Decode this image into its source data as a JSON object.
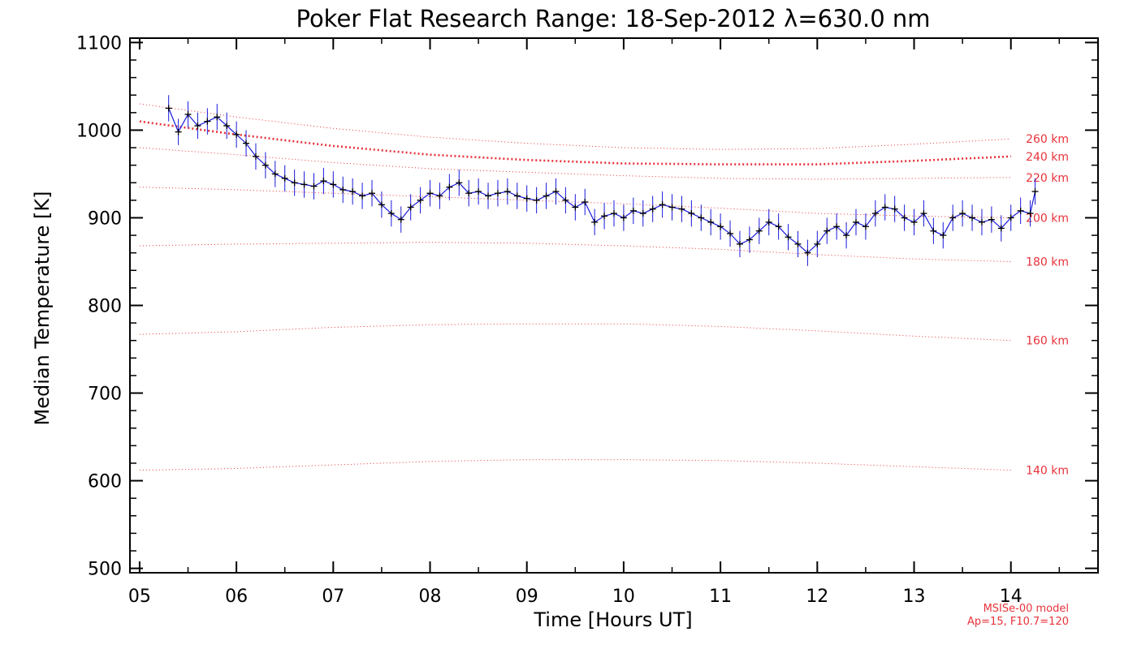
{
  "chart_data": {
    "type": "line",
    "title": "Poker Flat Research Range: 18-Sep-2012 λ=630.0 nm",
    "xlabel": "Time [Hours UT]",
    "ylabel": "Median Temperature [K]",
    "xlim": [
      4.9,
      14.9
    ],
    "ylim": [
      495,
      1105
    ],
    "x_ticks": [
      5,
      6,
      7,
      8,
      9,
      10,
      11,
      12,
      13,
      14
    ],
    "x_tick_labels": [
      "05",
      "06",
      "07",
      "08",
      "09",
      "10",
      "11",
      "12",
      "13",
      "14"
    ],
    "y_ticks": [
      500,
      600,
      700,
      800,
      900,
      1000,
      1100
    ],
    "y_tick_labels": [
      "500",
      "600",
      "700",
      "800",
      "900",
      "1000",
      "1100"
    ],
    "grid": false,
    "colors": {
      "data": "#1a1adc",
      "smoothed": "#000000",
      "model": "#e8323a"
    },
    "series": [
      {
        "kind": "measured",
        "errorbar": 15,
        "x": [
          5.3,
          5.4,
          5.5,
          5.6,
          5.7,
          5.8,
          5.9,
          6.0,
          6.1,
          6.2,
          6.3,
          6.4,
          6.5,
          6.6,
          6.7,
          6.8,
          6.9,
          7.0,
          7.1,
          7.2,
          7.3,
          7.4,
          7.5,
          7.6,
          7.7,
          7.8,
          7.9,
          8.0,
          8.1,
          8.2,
          8.3,
          8.4,
          8.5,
          8.6,
          8.7,
          8.8,
          8.9,
          9.0,
          9.1,
          9.2,
          9.3,
          9.4,
          9.5,
          9.6,
          9.7,
          9.8,
          9.9,
          10.0,
          10.1,
          10.2,
          10.3,
          10.4,
          10.5,
          10.6,
          10.7,
          10.8,
          10.9,
          11.0,
          11.1,
          11.2,
          11.3,
          11.4,
          11.5,
          11.6,
          11.7,
          11.8,
          11.9,
          12.0,
          12.1,
          12.2,
          12.3,
          12.4,
          12.5,
          12.6,
          12.7,
          12.8,
          12.9,
          13.0,
          13.1,
          13.2,
          13.3,
          13.4,
          13.5,
          13.6,
          13.7,
          13.8,
          13.9,
          14.0,
          14.1,
          14.2,
          14.25
        ],
        "y": [
          1025,
          998,
          1018,
          1005,
          1010,
          1015,
          1005,
          995,
          985,
          970,
          960,
          950,
          945,
          940,
          938,
          936,
          942,
          938,
          932,
          930,
          925,
          928,
          915,
          905,
          898,
          912,
          920,
          928,
          925,
          935,
          940,
          928,
          930,
          925,
          928,
          930,
          925,
          922,
          920,
          925,
          930,
          920,
          912,
          918,
          895,
          902,
          905,
          900,
          908,
          905,
          910,
          915,
          912,
          910,
          905,
          900,
          895,
          890,
          882,
          870,
          875,
          885,
          895,
          890,
          878,
          870,
          860,
          870,
          885,
          890,
          880,
          895,
          890,
          905,
          912,
          910,
          900,
          895,
          905,
          885,
          880,
          900,
          905,
          900,
          895,
          898,
          888,
          900,
          908,
          905,
          930
        ]
      }
    ],
    "model_curves": [
      {
        "label": "140 km",
        "x": [
          5,
          6,
          7,
          8,
          9,
          10,
          11,
          12,
          13,
          14
        ],
        "y": [
          612,
          614,
          618,
          622,
          624,
          624,
          623,
          620,
          616,
          612
        ]
      },
      {
        "label": "160 km",
        "x": [
          5,
          6,
          7,
          8,
          9,
          10,
          11,
          12,
          13,
          14
        ],
        "y": [
          767,
          770,
          775,
          778,
          779,
          779,
          776,
          771,
          765,
          760
        ]
      },
      {
        "label": "180 km",
        "x": [
          5,
          6,
          7,
          8,
          9,
          10,
          11,
          12,
          13,
          14
        ],
        "y": [
          868,
          870,
          871,
          872,
          871,
          868,
          864,
          858,
          853,
          850
        ]
      },
      {
        "label": "200 km",
        "x": [
          5,
          6,
          7,
          8,
          9,
          10,
          11,
          12,
          13,
          14
        ],
        "y": [
          935,
          932,
          928,
          924,
          920,
          916,
          911,
          905,
          902,
          900
        ]
      },
      {
        "label": "220 km",
        "x": [
          5,
          6,
          7,
          8,
          9,
          10,
          11,
          12,
          13,
          14
        ],
        "y": [
          980,
          972,
          963,
          956,
          952,
          948,
          945,
          944,
          945,
          946
        ]
      },
      {
        "label": "240 km",
        "x": [
          5,
          6,
          7,
          8,
          9,
          10,
          11,
          12,
          13,
          14
        ],
        "y": [
          1010,
          995,
          982,
          972,
          966,
          962,
          961,
          961,
          965,
          970
        ]
      },
      {
        "label": "260 km",
        "x": [
          5,
          6,
          7,
          8,
          9,
          10,
          11,
          12,
          13,
          14
        ],
        "y": [
          1030,
          1015,
          1002,
          992,
          985,
          980,
          978,
          979,
          984,
          990
        ]
      }
    ],
    "model_note": [
      "MSISe-00 model",
      "Ap=15, F10.7=120"
    ]
  }
}
